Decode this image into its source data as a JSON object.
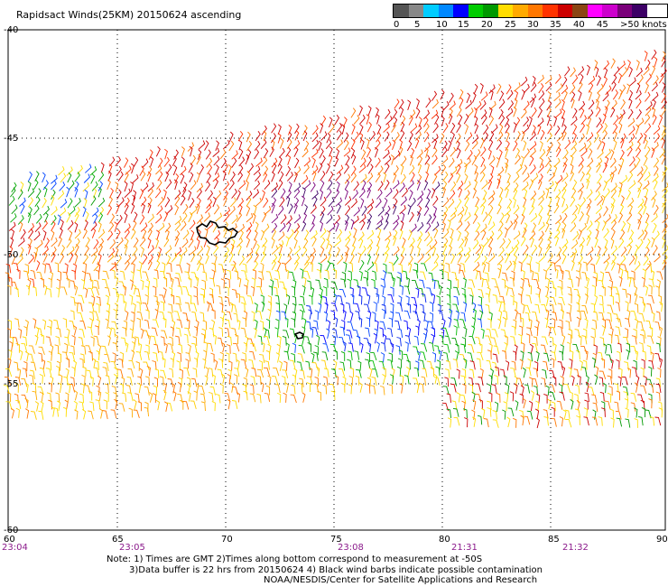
{
  "title": "Rapidsact Winds(25KM) 20150624 ascending",
  "legend": {
    "unit": "knots",
    "labels": [
      "0",
      "5",
      "10",
      "15",
      "20",
      "25",
      "30",
      "35",
      "40",
      "45",
      ">50 knots"
    ],
    "colors": [
      "#555555",
      "#888888",
      "#00ccff",
      "#0088ff",
      "#0000ff",
      "#00cc00",
      "#009900",
      "#ffdd00",
      "#ffaa00",
      "#ff7700",
      "#ff3300",
      "#cc0000",
      "#8b4513",
      "#ff00ff",
      "#cc00cc",
      "#7a007a",
      "#3d0066"
    ]
  },
  "map": {
    "lon_ticks": [
      "60",
      "65",
      "70",
      "75",
      "80",
      "85",
      "90"
    ],
    "lat_ticks": [
      "-40",
      "-45",
      "-50",
      "-55",
      "-60"
    ],
    "time_labels": [
      "23:04",
      "23:05",
      "23:08",
      "21:31",
      "21:32"
    ]
  },
  "notes": {
    "line1": "Note: 1) Times are GMT 2)Times along bottom correspond to measurement at -50S",
    "line2": "3)Data buffer is 22 hrs from 20150624 4) Black wind barbs indicate possible contamination",
    "line3": "NOAA/NESDIS/Center for Satellite Applications and Research"
  }
}
